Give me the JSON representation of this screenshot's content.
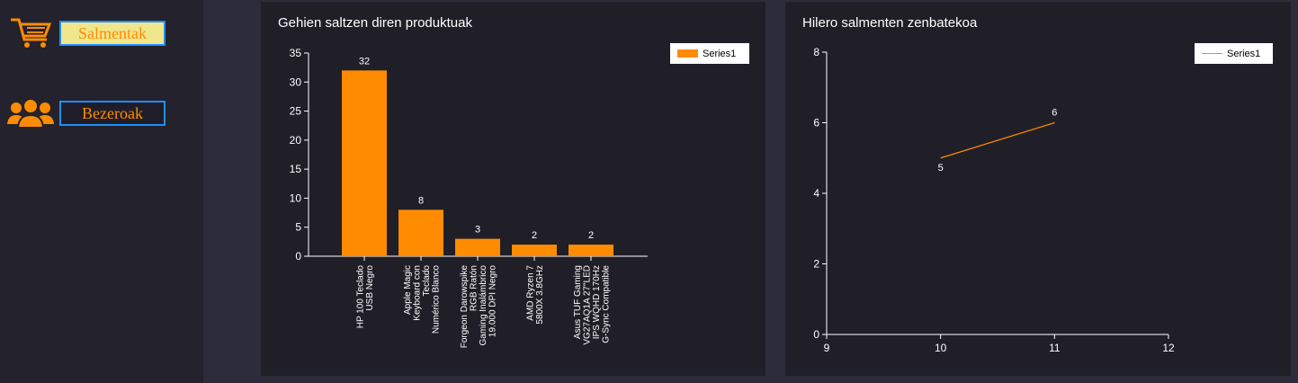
{
  "sidebar": {
    "items": [
      {
        "label": "Salmentak",
        "icon": "shopping-cart-icon",
        "bg": "#f0e68c"
      },
      {
        "label": "Bezeroak",
        "icon": "users-group-icon",
        "bg": "#1f1e28"
      }
    ]
  },
  "colors": {
    "accent": "#ff8c00",
    "panel": "#201f28",
    "background": "#2d2c3a",
    "sidebar": "#23222d",
    "button_border": "#1e90ff"
  },
  "bar_panel": {
    "title": "Gehien saltzen diren produktuak",
    "legend": "Series1"
  },
  "line_panel": {
    "title": "Hilero salmenten zenbatekoa",
    "legend": "Series1"
  },
  "chart_data": [
    {
      "type": "bar",
      "title": "Gehien saltzen diren produktuak",
      "categories": [
        [
          "HP 100 Teclado",
          "USB Negro"
        ],
        [
          "Apple Magic",
          "Keyboard con",
          "Teclado",
          "Numérico Blanco"
        ],
        [
          "Forgeon Darowspike",
          "RGB Ratón",
          "Gaming Inalámbrico",
          "19.000 DPI Negro"
        ],
        [
          "AMD Ryzen 7",
          "5800X 3.8GHz"
        ],
        [
          "Asus TUF Gaming",
          "VG27AQ1A 27\"LED",
          "IPS WQHD 170Hz",
          "G-Sync Compatible"
        ]
      ],
      "series": [
        {
          "name": "Series1",
          "values": [
            32,
            8,
            3,
            2,
            2
          ]
        }
      ],
      "ylim": [
        0,
        35
      ],
      "yticks": [
        0,
        5,
        10,
        15,
        20,
        25,
        30,
        35
      ],
      "legend_position": "top-right",
      "grid": false
    },
    {
      "type": "line",
      "title": "Hilero salmenten zenbatekoa",
      "series": [
        {
          "name": "Series1",
          "x": [
            10,
            11
          ],
          "values": [
            5,
            6
          ]
        }
      ],
      "xlim": [
        9,
        12
      ],
      "xticks": [
        9,
        10,
        11,
        12
      ],
      "ylim": [
        0,
        8
      ],
      "yticks": [
        0,
        2,
        4,
        6,
        8
      ],
      "legend_position": "top-right",
      "grid": false
    }
  ]
}
